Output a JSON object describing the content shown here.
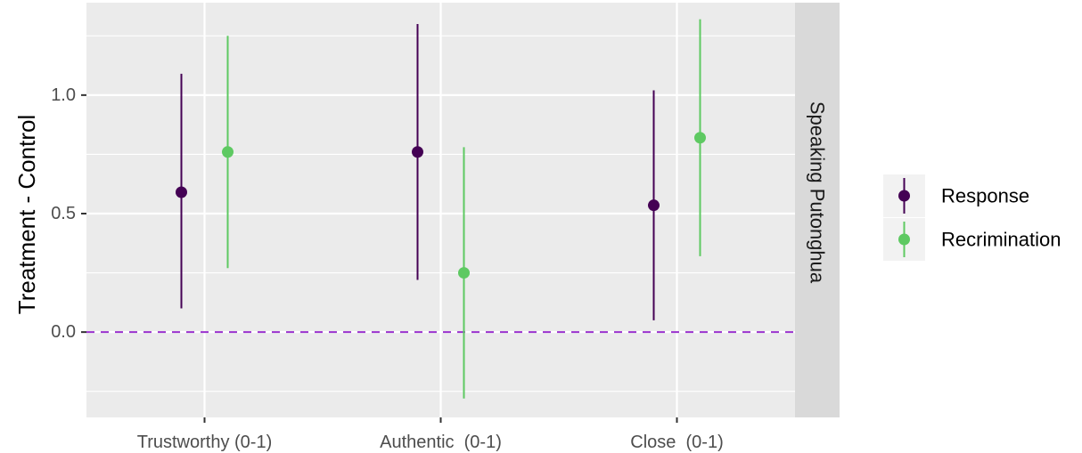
{
  "chart_data": {
    "type": "pointrange",
    "title": "",
    "xlabel": "",
    "ylabel": "Treatment - Control",
    "ylim": [
      -0.36,
      1.39
    ],
    "yticks": [
      0.0,
      0.5,
      1.0
    ],
    "ytick_labels": [
      "0.0",
      "0.5",
      "1.0"
    ],
    "categories": [
      "Trustworthy (0-1)",
      "Authentic  (0-1)",
      "Close  (0-1)"
    ],
    "facet_label": "Speaking Putonghua",
    "reference_line": {
      "y": 0.0,
      "style": "dashed",
      "color": "#9a32cd"
    },
    "grid": true,
    "legend_position": "right",
    "series": [
      {
        "name": "Response",
        "color": "#440154",
        "points": [
          {
            "category": "Trustworthy (0-1)",
            "estimate": 0.59,
            "lower": 0.1,
            "upper": 1.09
          },
          {
            "category": "Authentic  (0-1)",
            "estimate": 0.76,
            "lower": 0.22,
            "upper": 1.3
          },
          {
            "category": "Close  (0-1)",
            "estimate": 0.535,
            "lower": 0.05,
            "upper": 1.02
          }
        ]
      },
      {
        "name": "Recrimination",
        "color": "#5ec962",
        "points": [
          {
            "category": "Trustworthy (0-1)",
            "estimate": 0.76,
            "lower": 0.27,
            "upper": 1.25
          },
          {
            "category": "Authentic  (0-1)",
            "estimate": 0.25,
            "lower": -0.28,
            "upper": 0.78
          },
          {
            "category": "Close  (0-1)",
            "estimate": 0.82,
            "lower": 0.32,
            "upper": 1.32
          }
        ]
      }
    ]
  }
}
